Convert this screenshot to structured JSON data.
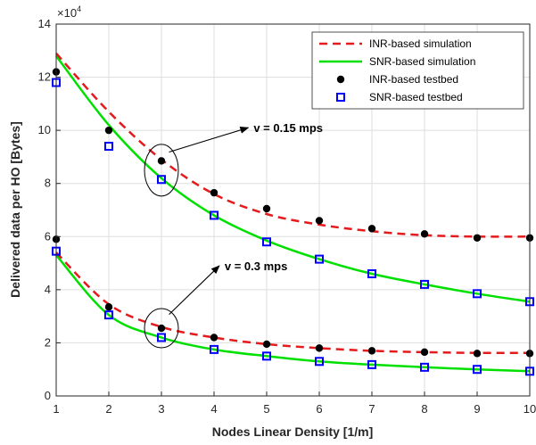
{
  "chart_data": {
    "type": "line",
    "xlabel": "Nodes Linear Density [1/m]",
    "ylabel": "Delivered data per HO [Bytes]",
    "y_multiplier_label": "×10",
    "y_multiplier_exp": "4",
    "xlim": [
      1,
      10
    ],
    "ylim": [
      0,
      14
    ],
    "x_ticks": [
      "1",
      "2",
      "3",
      "4",
      "5",
      "6",
      "7",
      "8",
      "9",
      "10"
    ],
    "y_ticks": [
      "0",
      "2",
      "4",
      "6",
      "8",
      "10",
      "12",
      "14"
    ],
    "grid": true,
    "legend_position": "top-right",
    "x": [
      1,
      2,
      3,
      4,
      5,
      6,
      7,
      8,
      9,
      10
    ],
    "series": [
      {
        "name": "INR-based simulation",
        "style": "dashed",
        "color": "#e41a1c",
        "group": "v=0.15",
        "values": [
          12.9,
          10.7,
          8.9,
          7.6,
          6.85,
          6.45,
          6.2,
          6.05,
          6.0,
          6.0
        ]
      },
      {
        "name": "SNR-based simulation",
        "style": "solid",
        "color": "#00e000",
        "group": "v=0.15",
        "values": [
          12.8,
          10.2,
          8.2,
          6.8,
          5.85,
          5.15,
          4.6,
          4.2,
          3.85,
          3.55
        ]
      },
      {
        "name": "INR-based testbed",
        "style": "marker-dot",
        "color": "#000000",
        "group": "v=0.15",
        "values": [
          12.2,
          10.0,
          8.85,
          7.65,
          7.05,
          6.6,
          6.3,
          6.1,
          5.95,
          5.95
        ]
      },
      {
        "name": "SNR-based testbed",
        "style": "marker-square",
        "color": "#0000ff",
        "group": "v=0.15",
        "values": [
          11.8,
          9.4,
          8.15,
          6.8,
          5.8,
          5.15,
          4.6,
          4.2,
          3.85,
          3.55
        ]
      },
      {
        "name": "INR-based simulation",
        "style": "dashed",
        "color": "#e41a1c",
        "group": "v=0.3",
        "values": [
          5.4,
          3.45,
          2.6,
          2.2,
          1.95,
          1.8,
          1.7,
          1.65,
          1.62,
          1.62
        ]
      },
      {
        "name": "SNR-based simulation",
        "style": "solid",
        "color": "#00e000",
        "group": "v=0.3",
        "values": [
          5.3,
          3.05,
          2.2,
          1.75,
          1.5,
          1.3,
          1.18,
          1.08,
          1.0,
          0.93
        ]
      },
      {
        "name": "INR-based testbed",
        "style": "marker-dot",
        "color": "#000000",
        "group": "v=0.3",
        "values": [
          5.9,
          3.35,
          2.55,
          2.2,
          1.95,
          1.8,
          1.7,
          1.65,
          1.6,
          1.6
        ]
      },
      {
        "name": "SNR-based testbed",
        "style": "marker-square",
        "color": "#0000ff",
        "group": "v=0.3",
        "values": [
          5.45,
          3.05,
          2.2,
          1.75,
          1.5,
          1.3,
          1.18,
          1.08,
          1.0,
          0.93
        ]
      }
    ],
    "legend": [
      {
        "label": "INR-based simulation",
        "style": "dashed",
        "color": "#e41a1c"
      },
      {
        "label": "SNR-based simulation",
        "style": "solid",
        "color": "#00e000"
      },
      {
        "label": "INR-based testbed",
        "style": "marker-dot",
        "color": "#000000"
      },
      {
        "label": "SNR-based testbed",
        "style": "marker-square",
        "color": "#0000ff"
      }
    ],
    "annotations": [
      {
        "text": "v = 0.15 mps",
        "ellipse_x": 3,
        "ellipse_y": 8.5,
        "arrow_to_x": 4.65,
        "arrow_to_y": 10.1
      },
      {
        "text": "v = 0.3 mps",
        "ellipse_x": 3,
        "ellipse_y": 2.55,
        "arrow_to_x": 4.1,
        "arrow_to_y": 4.9
      }
    ]
  }
}
